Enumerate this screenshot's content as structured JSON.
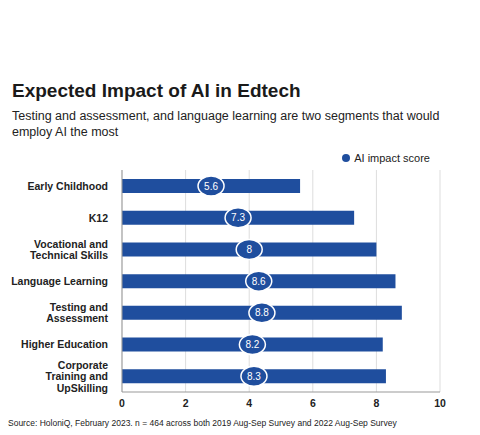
{
  "chart_data": {
    "type": "bar",
    "orientation": "horizontal",
    "title": "Expected Impact of AI in Edtech",
    "subtitle": "Testing and assessment, and language learning are two segments that would employ AI the most",
    "source": "Source: HoloniQ, February 2023. n = 464 across both 2019 Aug-Sep Survey and 2022 Aug-Sep Survey",
    "categories": [
      "Early Childhood",
      "K12",
      "Vocational and Technical Skills",
      "Language Learning",
      "Testing and Assessment",
      "Higher Education",
      "Corporate Training and UpSkilling"
    ],
    "series": [
      {
        "name": "AI impact score",
        "color": "#1f4e9e",
        "values": [
          5.6,
          7.3,
          8,
          8.6,
          8.8,
          8.2,
          8.3
        ]
      }
    ],
    "xlim": [
      0,
      10
    ],
    "xticks": [
      0,
      2,
      4,
      6,
      8,
      10
    ],
    "grid": true,
    "legend": "top-right",
    "data_labels": true
  }
}
